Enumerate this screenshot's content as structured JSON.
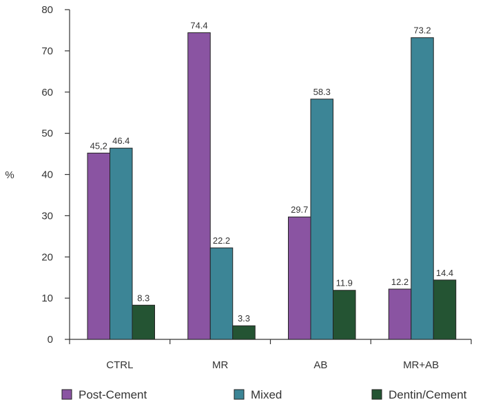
{
  "chart_data": {
    "type": "bar",
    "title": "",
    "xlabel": "",
    "ylabel": "%",
    "ylim": [
      0,
      80
    ],
    "yticks": [
      0,
      10,
      20,
      30,
      40,
      50,
      60,
      70,
      80
    ],
    "grid": false,
    "legend_position": "bottom",
    "categories": [
      "CTRL",
      "MR",
      "AB",
      "MR+AB"
    ],
    "series": [
      {
        "name": "Post-Cement",
        "color": "#8a54a2",
        "values": [
          45.2,
          74.4,
          29.7,
          12.2
        ],
        "labels": [
          "45,2",
          "74.4",
          "29.7",
          "12.2"
        ]
      },
      {
        "name": "Mixed",
        "color": "#3c8596",
        "values": [
          46.4,
          22.2,
          58.3,
          73.2
        ],
        "labels": [
          "46.4",
          "22.2",
          "58.3",
          "73.2"
        ]
      },
      {
        "name": "Dentin/Cement",
        "color": "#245433",
        "values": [
          8.3,
          3.3,
          11.9,
          14.4
        ],
        "labels": [
          "8.3",
          "3.3",
          "11.9",
          "14.4"
        ]
      }
    ]
  }
}
